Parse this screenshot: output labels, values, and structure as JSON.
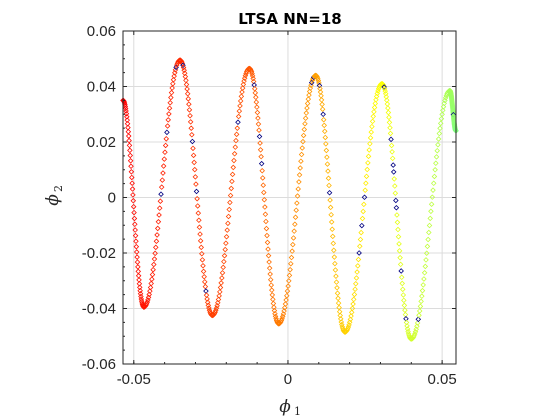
{
  "chart_data": {
    "type": "scatter",
    "title": "LTSA NN=18",
    "xlabel": {
      "symbol": "ϕ",
      "subscript": "1"
    },
    "ylabel": {
      "symbol": "ϕ",
      "subscript": "2"
    },
    "xlim": [
      -0.0535,
      0.0545
    ],
    "ylim": [
      -0.06,
      0.06
    ],
    "xticks": [
      -0.05,
      0,
      0.05
    ],
    "xtick_labels": [
      "-0.05",
      "0",
      "0.05"
    ],
    "yticks": [
      -0.06,
      -0.04,
      -0.02,
      0,
      0.02,
      0.04,
      0.06
    ],
    "ytick_labels": [
      "-0.06",
      "-0.04",
      "-0.02",
      "0",
      "0.02",
      "0.04",
      "0.06"
    ],
    "grid": true,
    "marker": "diamond-open",
    "colormap": "red-to-green along curve",
    "colors": {
      "start": "#ff0000",
      "mid1": "#ff8c00",
      "mid2": "#ffff00",
      "end": "#80ff80",
      "outlier": "#000080"
    },
    "curve_extrema": {
      "x": [
        -0.0535,
        -0.0467,
        -0.035,
        -0.0245,
        -0.0125,
        -0.003,
        0.009,
        0.0185,
        0.0305,
        0.04,
        0.0525,
        0.0545
      ],
      "y": [
        0.035,
        -0.0395,
        0.0495,
        -0.0425,
        0.0465,
        -0.0455,
        0.044,
        -0.0485,
        0.041,
        -0.051,
        0.0385,
        0.024
      ]
    },
    "point_count": 600
  }
}
